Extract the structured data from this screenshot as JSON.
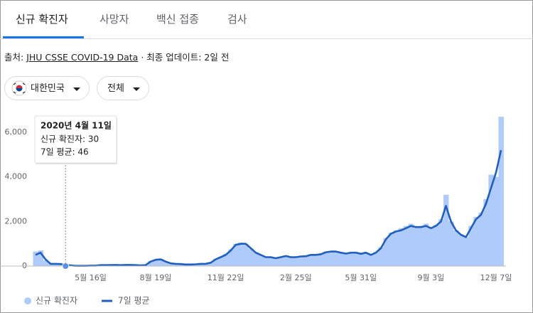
{
  "tabs": [
    "신규 확진자",
    "사망자",
    "백신 접종",
    "검사"
  ],
  "source": {
    "label": "출처:",
    "link": "JHU CSSE COVID-19 Data",
    "updated": "· 최종 업데이트: 2일 전"
  },
  "filters": [
    "대한민국",
    "전체"
  ],
  "tooltip": {
    "date": "2020년 4월 11일",
    "lines": [
      "신규 확진자: 30",
      "7일 평균: 46"
    ]
  },
  "chart_data": {
    "type": "bar-line",
    "categories": [
      null,
      null,
      null,
      null,
      null,
      null,
      null,
      null,
      null,
      null,
      null,
      "5월 16일",
      null,
      null,
      null,
      null,
      null,
      null,
      null,
      null,
      null,
      null,
      null,
      null,
      "8월 19일",
      null,
      null,
      null,
      null,
      null,
      null,
      null,
      null,
      null,
      null,
      null,
      null,
      null,
      "11월 22일",
      null,
      null,
      null,
      null,
      null,
      null,
      null,
      null,
      null,
      null,
      null,
      null,
      null,
      "2월 25일",
      null,
      null,
      null,
      null,
      null,
      null,
      null,
      null,
      null,
      null,
      null,
      null,
      "5월 31일",
      null,
      null,
      null,
      null,
      null,
      null,
      null,
      null,
      null,
      null,
      null,
      null,
      null,
      "9월 3일",
      null,
      null,
      null,
      null,
      null,
      null,
      null,
      null,
      null,
      null,
      null,
      null,
      "12월 7일",
      null
    ],
    "series": [
      {
        "name": "신규 확진자",
        "color": "#aecbfa",
        "values": [
          650,
          700,
          250,
          110,
          100,
          80,
          40,
          30,
          12,
          10,
          15,
          25,
          20,
          45,
          40,
          50,
          55,
          45,
          55,
          50,
          40,
          35,
          45,
          230,
          300,
          320,
          190,
          120,
          100,
          95,
          70,
          75,
          85,
          110,
          100,
          170,
          330,
          420,
          550,
          750,
          1000,
          1050,
          980,
          780,
          620,
          500,
          420,
          400,
          360,
          420,
          470,
          390,
          410,
          440,
          450,
          520,
          500,
          540,
          650,
          670,
          640,
          600,
          570,
          620,
          610,
          560,
          610,
          520,
          630,
          850,
          1250,
          1500,
          1600,
          1700,
          1800,
          1900,
          1750,
          1800,
          1900,
          1700,
          1850,
          2100,
          3200,
          2000,
          1600,
          1400,
          1300,
          1800,
          2200,
          2400,
          3000,
          4100,
          4000,
          6700
        ]
      },
      {
        "name": "7일 평균",
        "color": "#1f5fbf",
        "values": [
          500,
          600,
          300,
          100,
          100,
          90,
          50,
          30,
          10,
          10,
          10,
          20,
          20,
          40,
          40,
          45,
          50,
          40,
          50,
          50,
          40,
          30,
          40,
          200,
          280,
          300,
          200,
          120,
          100,
          90,
          70,
          70,
          80,
          100,
          100,
          150,
          300,
          400,
          500,
          700,
          950,
          1000,
          1000,
          800,
          600,
          500,
          400,
          400,
          350,
          400,
          450,
          400,
          400,
          430,
          440,
          500,
          500,
          530,
          620,
          650,
          650,
          600,
          560,
          600,
          600,
          550,
          600,
          500,
          600,
          800,
          1200,
          1450,
          1550,
          1600,
          1700,
          1800,
          1750,
          1750,
          1800,
          1700,
          1800,
          2000,
          2700,
          2000,
          1600,
          1400,
          1300,
          1700,
          2100,
          2300,
          2800,
          3500,
          4200,
          5200
        ]
      }
    ],
    "ylim": [
      0,
      6800
    ],
    "yticks": [
      0,
      {
        "value": 2000,
        "label": "2,000"
      },
      {
        "value": 4000,
        "label": "4,000"
      },
      {
        "value": 6000,
        "label": "6,000"
      }
    ],
    "grid": false,
    "legend": "bottom-left"
  }
}
